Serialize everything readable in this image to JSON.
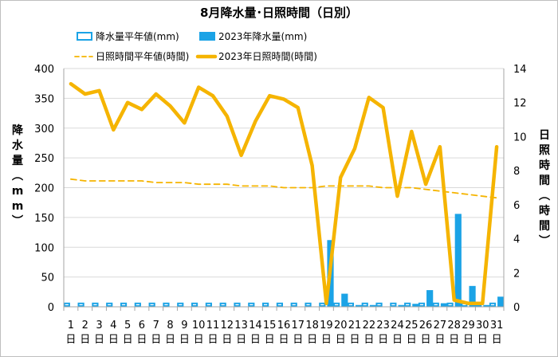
{
  "chart_data": {
    "type": "bar+line",
    "title": "8月降水量･日照時間（日別）",
    "categories": [
      "1日",
      "2日",
      "3日",
      "4日",
      "5日",
      "6日",
      "7日",
      "8日",
      "9日",
      "10日",
      "11日",
      "12日",
      "13日",
      "14日",
      "15日",
      "16日",
      "17日",
      "18日",
      "19日",
      "20日",
      "21日",
      "22日",
      "23日",
      "24日",
      "25日",
      "26日",
      "27日",
      "28日",
      "29日",
      "30日",
      "31日"
    ],
    "left_axis": {
      "label": "降水量（mm）",
      "range": [
        0,
        400
      ],
      "ticks": [
        0,
        50,
        100,
        150,
        200,
        250,
        300,
        350,
        400
      ]
    },
    "right_axis": {
      "label": "日照時間（時間）",
      "range": [
        0,
        14
      ],
      "ticks": [
        0,
        2,
        4,
        6,
        8,
        10,
        12,
        14
      ]
    },
    "series": [
      {
        "name": "降水量平年値(mm)",
        "kind": "bar",
        "axis": "left",
        "color": "#1ba3e6",
        "style": "outline",
        "values": [
          7,
          7,
          7,
          7,
          7,
          7,
          7,
          7,
          7,
          7,
          7,
          7,
          7,
          7,
          7,
          7,
          7,
          7,
          7,
          7,
          7,
          7,
          7,
          7,
          7,
          7,
          7,
          7,
          7,
          7,
          7
        ]
      },
      {
        "name": "2023年降水量(mm)",
        "kind": "bar",
        "axis": "left",
        "color": "#1ba3e6",
        "style": "filled",
        "values": [
          0,
          0,
          0,
          0,
          0,
          0,
          0,
          0,
          0,
          0,
          0,
          0,
          0,
          0,
          0,
          0,
          0,
          0,
          112,
          22,
          3,
          3,
          0,
          3,
          5,
          28,
          6,
          156,
          35,
          3,
          17
        ]
      },
      {
        "name": "日照時間平年値(時間)",
        "kind": "line",
        "axis": "right",
        "color": "#f5b400",
        "style": "dashed",
        "values": [
          7.5,
          7.4,
          7.4,
          7.4,
          7.4,
          7.4,
          7.3,
          7.3,
          7.3,
          7.2,
          7.2,
          7.2,
          7.1,
          7.1,
          7.1,
          7.0,
          7.0,
          7.0,
          7.1,
          7.1,
          7.1,
          7.1,
          7.0,
          7.0,
          7.0,
          6.9,
          6.8,
          6.7,
          6.6,
          6.5,
          6.4
        ]
      },
      {
        "name": "2023年日照時間(時間)",
        "kind": "line",
        "axis": "right",
        "color": "#f5b400",
        "style": "solid",
        "values": [
          13.1,
          12.5,
          12.7,
          10.4,
          12.0,
          11.6,
          12.5,
          11.8,
          10.8,
          12.9,
          12.4,
          11.2,
          8.9,
          10.9,
          12.4,
          12.2,
          11.7,
          8.3,
          0.2,
          7.6,
          9.3,
          12.3,
          11.7,
          6.5,
          10.3,
          7.2,
          9.4,
          0.4,
          0.2,
          0.2,
          9.4
        ]
      }
    ]
  }
}
